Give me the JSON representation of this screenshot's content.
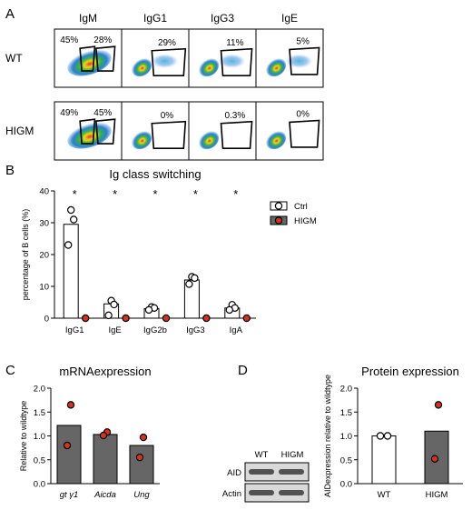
{
  "panels": {
    "A": {
      "letter": "A",
      "columns": [
        "IgM",
        "IgG1",
        "IgG3",
        "IgE"
      ],
      "rows": [
        {
          "label": "WT",
          "cells": [
            [
              "45%",
              "28%"
            ],
            [
              "29%"
            ],
            [
              "11%"
            ],
            [
              "5%"
            ]
          ]
        },
        {
          "label": "HIGM",
          "cells": [
            [
              "49%",
              "45%"
            ],
            [
              "0%"
            ],
            [
              "0.3%"
            ],
            [
              "0%"
            ]
          ]
        }
      ]
    },
    "B": {
      "letter": "B"
    },
    "C": {
      "letter": "C"
    },
    "D": {
      "letter": "D",
      "blot": {
        "lanes": [
          "WT",
          "HIGM"
        ],
        "bands": [
          "AID",
          "Actin"
        ]
      }
    }
  },
  "colors": {
    "ctrl": "#ffffff",
    "higm_bar": "#666666",
    "higm_dot": "#d7301f",
    "axis": "#000000"
  },
  "chart_data": [
    {
      "type": "bar",
      "title": "Ig class switching",
      "xlabel": "",
      "ylabel": "percentage of B cells (%)",
      "ylim": [
        0,
        40
      ],
      "yticks": [
        "0",
        "10",
        "20",
        "30",
        "40"
      ],
      "categories": [
        "IgG1",
        "IgE",
        "IgG2b",
        "IgG3",
        "IgA"
      ],
      "annotations": [
        "*",
        "*",
        "*",
        "*",
        "*"
      ],
      "legend": "top-right",
      "series": [
        {
          "name": "Ctrl",
          "values": [
            29.5,
            4.5,
            3.0,
            12.0,
            3.2
          ],
          "points": [
            [
              34,
              31,
              23
            ],
            [
              5.5,
              4.3,
              0.9
            ],
            [
              3.5,
              3.2,
              2.6
            ],
            [
              13,
              12.6,
              10.7
            ],
            [
              4.2,
              3.2,
              2.6
            ]
          ]
        },
        {
          "name": "HIGM",
          "values": [
            0,
            0,
            0,
            0,
            0
          ],
          "points": [
            [
              0
            ],
            [
              0
            ],
            [
              0
            ],
            [
              0
            ],
            [
              0
            ]
          ]
        }
      ]
    },
    {
      "type": "bar",
      "title": "mRNAexpression",
      "xlabel": "",
      "ylabel": "Relative to wildtype",
      "ylim": [
        0,
        2.0
      ],
      "yticks": [
        "0.0",
        "0.5",
        "1.0",
        "1.5",
        "2.0"
      ],
      "categories": [
        "gt γ1",
        "Aicda",
        "Ung"
      ],
      "values": [
        1.22,
        1.03,
        0.8
      ],
      "points": [
        [
          1.65,
          0.8
        ],
        [
          1.08,
          1.01
        ],
        [
          0.97,
          0.55
        ]
      ]
    },
    {
      "type": "bar",
      "title": "Protein expression",
      "xlabel": "",
      "ylabel": "AIDexpression relative to wildtype",
      "ylim": [
        0,
        2.0
      ],
      "yticks": [
        "0.0",
        "0.5",
        "1.0",
        "1.5",
        "2.0"
      ],
      "categories": [
        "WT",
        "HIGM"
      ],
      "values": [
        1.0,
        1.1
      ],
      "points": [
        [
          1.0,
          1.0
        ],
        [
          1.65,
          0.52
        ]
      ]
    }
  ]
}
